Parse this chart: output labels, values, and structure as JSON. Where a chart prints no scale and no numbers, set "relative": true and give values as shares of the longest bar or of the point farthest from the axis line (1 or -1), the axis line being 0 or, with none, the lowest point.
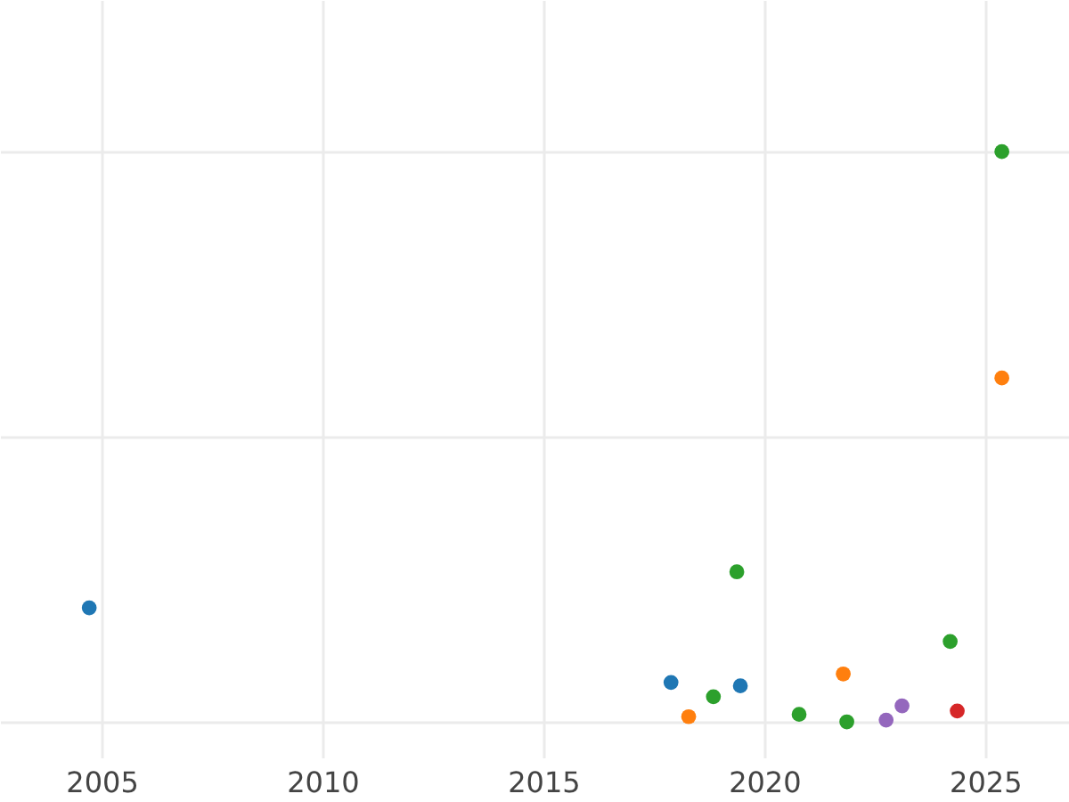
{
  "chart_data": {
    "type": "scatter",
    "relative": true,
    "grid": true,
    "legend": false,
    "xlim": [
      2002.7,
      2026.9
    ],
    "xticks": [
      2005,
      2010,
      2015,
      2020,
      2025
    ],
    "series": [
      {
        "color": "#1f77b4",
        "x": [
          2004.72,
          2017.89,
          2019.46
        ],
        "values": [
          0.2,
          0.069,
          0.063
        ]
      },
      {
        "color": "#ff7f0e",
        "x": [
          2018.29,
          2021.79,
          2025.38
        ],
        "values": [
          0.009,
          0.084,
          0.603
        ]
      },
      {
        "color": "#2ca02c",
        "x": [
          2018.85,
          2019.38,
          2020.79,
          2021.87,
          2024.21,
          2025.38
        ],
        "values": [
          0.044,
          0.263,
          0.013,
          0,
          0.141,
          1
        ]
      },
      {
        "color": "#d62728",
        "x": [
          2024.37
        ],
        "values": [
          0.019
        ]
      },
      {
        "color": "#9467bd",
        "x": [
          2022.76,
          2023.12
        ],
        "values": [
          0.003,
          0.028
        ]
      }
    ]
  }
}
